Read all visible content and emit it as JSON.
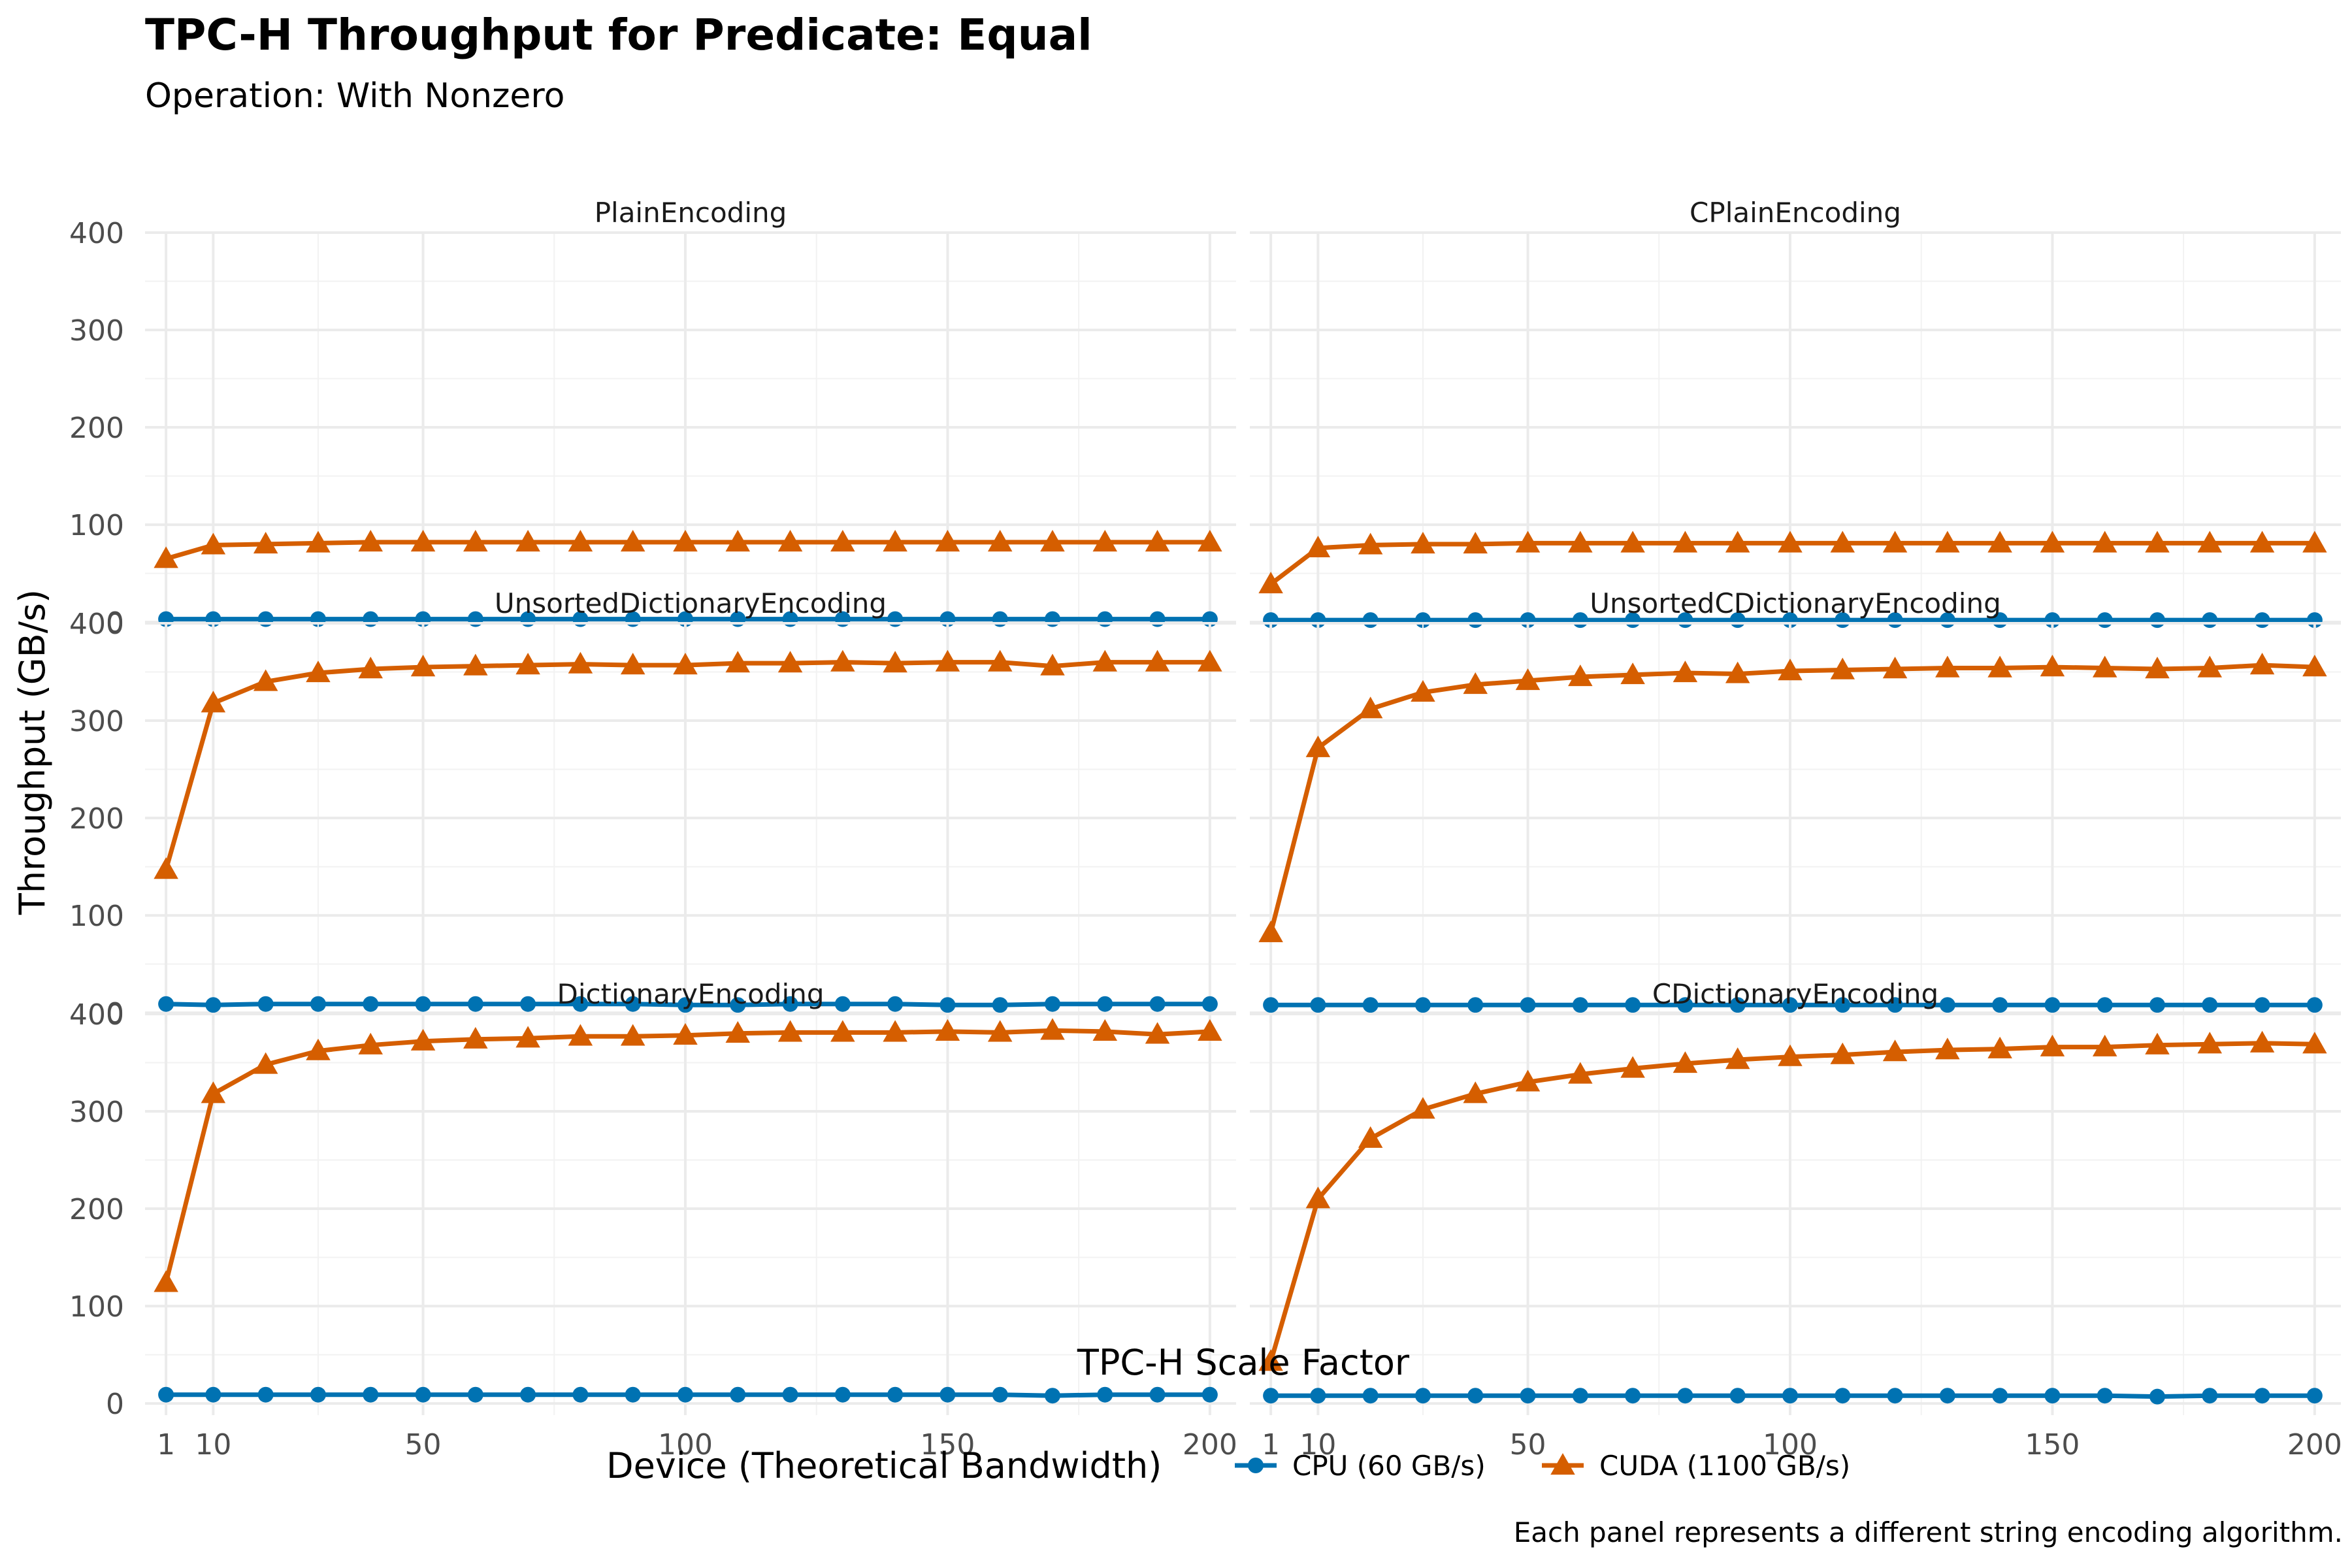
{
  "chart_data": {
    "type": "line",
    "title": "TPC-H Throughput for Predicate: Equal",
    "subtitle": "Operation: With Nonzero",
    "xlabel": "TPC-H Scale Factor",
    "ylabel": "Throughput (GB/s)",
    "caption": "Each panel represents a different string encoding algorithm.",
    "legend": {
      "title": "Device (Theoretical Bandwidth)",
      "position": "bottom",
      "entries": [
        {
          "label": "CPU (60 GB/s)",
          "color": "#0072B2",
          "marker": "circle"
        },
        {
          "label": "CUDA (1100 GB/s)",
          "color": "#D55E00",
          "marker": "triangle"
        }
      ]
    },
    "x": [
      1,
      10,
      20,
      30,
      40,
      50,
      60,
      70,
      80,
      90,
      100,
      110,
      120,
      130,
      140,
      150,
      160,
      170,
      180,
      190,
      200
    ],
    "xlim": [
      -3,
      205
    ],
    "ylim": [
      -12,
      400
    ],
    "x_ticks": [
      1,
      10,
      50,
      100,
      150,
      200
    ],
    "x_tick_labels": [
      "1",
      "10",
      "50",
      "100",
      "150",
      "200"
    ],
    "y_ticks": [
      0,
      100,
      200,
      300,
      400
    ],
    "y_tick_labels": [
      "0",
      "100",
      "200",
      "300",
      "400"
    ],
    "grid": true,
    "panels": [
      {
        "name": "PlainEncoding",
        "series": [
          {
            "name": "CPU (60 GB/s)",
            "values": [
              3,
              3,
              3,
              3,
              3,
              3,
              3,
              3,
              3,
              3,
              3,
              3,
              3,
              3,
              3,
              3,
              3,
              3,
              3,
              3,
              3
            ]
          },
          {
            "name": "CUDA (1100 GB/s)",
            "values": [
              65,
              79,
              80,
              81,
              82,
              82,
              82,
              82,
              82,
              82,
              82,
              82,
              82,
              82,
              82,
              82,
              82,
              82,
              82,
              82,
              82
            ]
          }
        ]
      },
      {
        "name": "CPlainEncoding",
        "series": [
          {
            "name": "CPU (60 GB/s)",
            "values": [
              2,
              2,
              2,
              2,
              2,
              2,
              2,
              2,
              2,
              2,
              2,
              2,
              2,
              2,
              2,
              2,
              2,
              2,
              2,
              2,
              2
            ]
          },
          {
            "name": "CUDA (1100 GB/s)",
            "values": [
              39,
              76,
              79,
              80,
              80,
              81,
              81,
              81,
              81,
              81,
              81,
              81,
              81,
              81,
              81,
              81,
              81,
              81,
              81,
              81,
              81
            ]
          }
        ]
      },
      {
        "name": "UnsortedDictionaryEncoding",
        "series": [
          {
            "name": "CPU (60 GB/s)",
            "values": [
              9,
              8,
              9,
              9,
              9,
              9,
              9,
              9,
              9,
              9,
              8,
              8,
              9,
              9,
              9,
              8,
              8,
              9,
              9,
              9,
              9
            ]
          },
          {
            "name": "CUDA (1100 GB/s)",
            "values": [
              147,
              318,
              340,
              349,
              353,
              355,
              356,
              357,
              358,
              357,
              357,
              359,
              359,
              360,
              359,
              360,
              360,
              356,
              360,
              360,
              360
            ]
          }
        ]
      },
      {
        "name": "UnsortedCDictionaryEncoding",
        "series": [
          {
            "name": "CPU (60 GB/s)",
            "values": [
              8,
              8,
              8,
              8,
              8,
              8,
              8,
              8,
              8,
              8,
              8,
              8,
              8,
              8,
              8,
              8,
              8,
              8,
              8,
              8,
              8
            ]
          },
          {
            "name": "CUDA (1100 GB/s)",
            "values": [
              82,
              272,
              312,
              329,
              337,
              341,
              345,
              347,
              349,
              348,
              351,
              352,
              353,
              354,
              354,
              355,
              354,
              353,
              354,
              357,
              355
            ]
          }
        ]
      },
      {
        "name": "DictionaryEncoding",
        "series": [
          {
            "name": "CPU (60 GB/s)",
            "values": [
              9,
              9,
              9,
              9,
              9,
              9,
              9,
              9,
              9,
              9,
              9,
              9,
              9,
              9,
              9,
              9,
              9,
              8,
              9,
              9,
              9
            ]
          },
          {
            "name": "CUDA (1100 GB/s)",
            "values": [
              124,
              318,
              348,
              362,
              368,
              372,
              374,
              375,
              377,
              377,
              378,
              380,
              381,
              381,
              381,
              382,
              381,
              383,
              382,
              379,
              382
            ]
          }
        ]
      },
      {
        "name": "CDictionaryEncoding",
        "series": [
          {
            "name": "CPU (60 GB/s)",
            "values": [
              8,
              8,
              8,
              8,
              8,
              8,
              8,
              8,
              8,
              8,
              8,
              8,
              8,
              8,
              8,
              8,
              8,
              7,
              8,
              8,
              8
            ]
          },
          {
            "name": "CUDA (1100 GB/s)",
            "values": [
              43,
              210,
              272,
              302,
              318,
              330,
              338,
              344,
              349,
              353,
              356,
              358,
              361,
              363,
              364,
              366,
              366,
              368,
              369,
              370,
              369
            ]
          }
        ]
      }
    ]
  }
}
